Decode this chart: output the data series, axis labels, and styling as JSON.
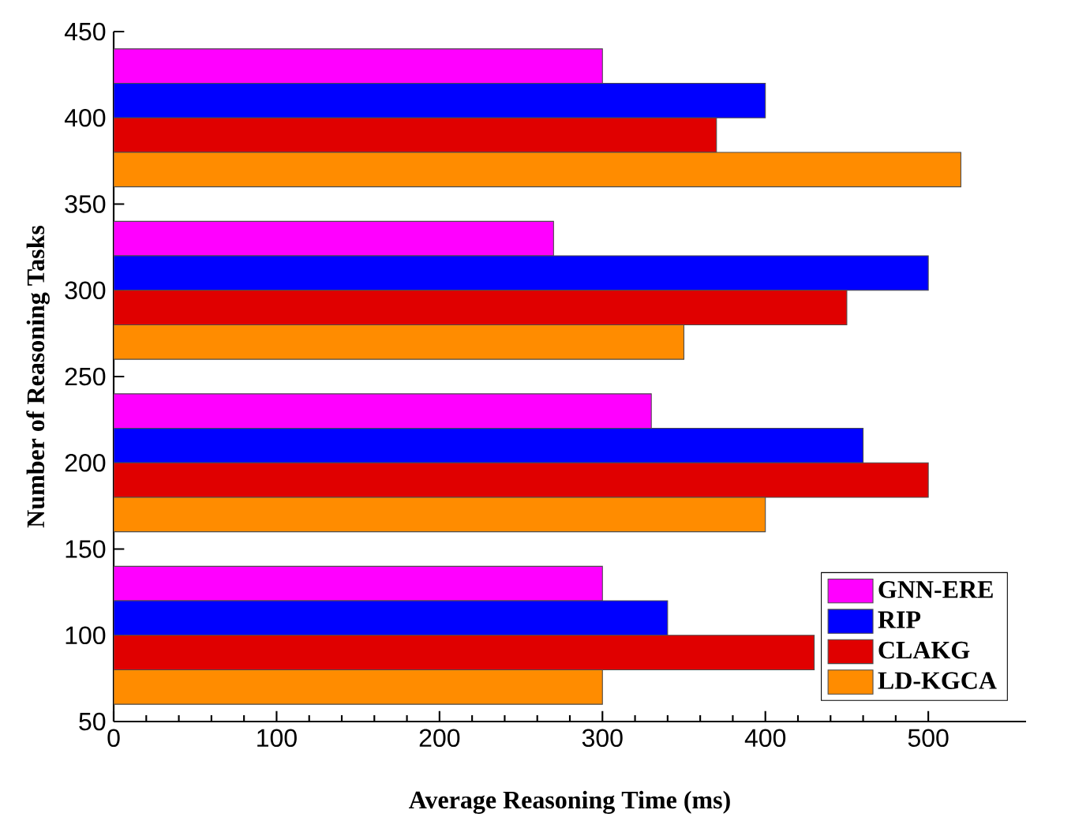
{
  "chart_data": {
    "type": "bar",
    "orientation": "horizontal",
    "xlabel": "Average Reasoning Time (ms)",
    "ylabel": "Number of Reasoning Tasks",
    "x": [
      100,
      200,
      300,
      400
    ],
    "series": [
      {
        "name": "GNN-ERE",
        "color": "#ff00ff",
        "values": [
          300,
          330,
          270,
          300
        ]
      },
      {
        "name": "RIP",
        "color": "#0000ff",
        "values": [
          340,
          460,
          500,
          400
        ]
      },
      {
        "name": "CLAKG",
        "color": "#e00000",
        "values": [
          430,
          500,
          450,
          370
        ]
      },
      {
        "name": "LD-KGCA",
        "color": "#ff8c00",
        "values": [
          300,
          400,
          350,
          520
        ]
      }
    ],
    "xlim": [
      0,
      560
    ],
    "xticks": [
      0,
      100,
      200,
      300,
      400,
      500
    ],
    "ylim": [
      50,
      450
    ],
    "yticks": [
      50,
      100,
      150,
      200,
      250,
      300,
      350,
      400,
      450
    ],
    "legend": "bottom right"
  }
}
